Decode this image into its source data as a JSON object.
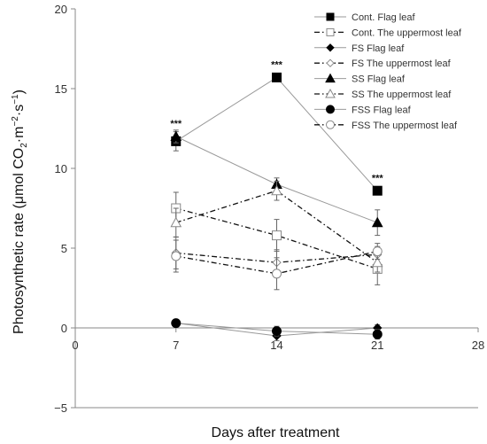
{
  "chart_data": {
    "type": "line",
    "xlabel": "Days after treatment",
    "ylabel_main": "Photosynthetic rate (μmol CO",
    "ylabel_sub1": "2",
    "ylabel_mid": "·m",
    "ylabel_sup1": "−2",
    "ylabel_mid2": "·s",
    "ylabel_sup2": "−1",
    "ylabel_end": ")",
    "xlim": [
      0,
      28
    ],
    "ylim": [
      -5,
      20
    ],
    "xticks": [
      0,
      7,
      14,
      21,
      28
    ],
    "yticks": [
      -5,
      0,
      5,
      10,
      15,
      20
    ],
    "xtick_labels": [
      "0",
      "7",
      "14",
      "21",
      "28"
    ],
    "ytick_labels": [
      "−5",
      "0",
      "5",
      "10",
      "15",
      "20"
    ],
    "x": [
      7,
      14,
      21
    ],
    "legend_position": "top-right",
    "grid": false,
    "series": [
      {
        "name": "Cont. Flag leaf",
        "values": [
          11.7,
          15.7,
          8.6
        ],
        "errors": [
          0.6,
          0.0,
          0.0
        ],
        "marker": "square",
        "filled": true,
        "dash": "solid"
      },
      {
        "name": "Cont. The uppermost leaf",
        "values": [
          7.5,
          5.8,
          3.7
        ],
        "errors": [
          1.0,
          1.0,
          1.0
        ],
        "marker": "square",
        "filled": false,
        "dash": "dashdot"
      },
      {
        "name": "FS Flag leaf",
        "values": [
          0.3,
          -0.5,
          0.0
        ],
        "errors": [
          0.2,
          0.3,
          0.2
        ],
        "marker": "diamond",
        "filled": true,
        "dash": "solid"
      },
      {
        "name": "FS The uppermost leaf",
        "values": [
          4.7,
          4.1,
          4.6
        ],
        "errors": [
          1.0,
          0.8,
          0.5
        ],
        "marker": "diamond",
        "filled": false,
        "dash": "dashdot"
      },
      {
        "name": "SS Flag leaf",
        "values": [
          12.0,
          9.0,
          6.6
        ],
        "errors": [
          0.4,
          0.4,
          0.8
        ],
        "marker": "triangle",
        "filled": true,
        "dash": "solid"
      },
      {
        "name": "SS The uppermost leaf",
        "values": [
          6.6,
          8.6,
          4.1
        ],
        "errors": [
          0.9,
          0.6,
          0.6
        ],
        "marker": "triangle",
        "filled": false,
        "dash": "dashdot"
      },
      {
        "name": "FSS Flag leaf",
        "values": [
          0.3,
          -0.2,
          -0.4
        ],
        "errors": [
          0.2,
          0.3,
          0.3
        ],
        "marker": "circle",
        "filled": true,
        "dash": "solid"
      },
      {
        "name": "FSS The uppermost leaf",
        "values": [
          4.5,
          3.4,
          4.8
        ],
        "errors": [
          1.0,
          1.0,
          0.5
        ],
        "marker": "circle",
        "filled": false,
        "dash": "dashdot"
      }
    ],
    "annotations": [
      {
        "text": "***",
        "x": 7,
        "y": 12.6
      },
      {
        "text": "***",
        "x": 14,
        "y": 16.3
      },
      {
        "text": "***",
        "x": 21,
        "y": 9.2
      }
    ]
  }
}
